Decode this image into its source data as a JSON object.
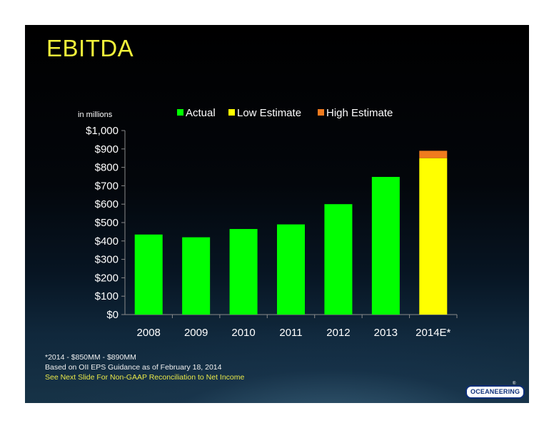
{
  "title": "EBITDA",
  "footer": {
    "note1": "*2014 - $850MM - $890MM",
    "note2": "Based on OII EPS Guidance as of February 18, 2014",
    "note3": "See Next Slide For Non-GAAP Reconciliation to Net Income"
  },
  "logo": {
    "text": "OCEANEERING",
    "mark": "®"
  },
  "colors": {
    "actual": "#00ff00",
    "low_estimate": "#ffff00",
    "high_estimate": "#f07b1e",
    "title": "#f2f23a"
  },
  "chart_data": {
    "type": "bar",
    "stacked": true,
    "title": "",
    "unit_note": "in millions",
    "categories": [
      "2008",
      "2009",
      "2010",
      "2011",
      "2012",
      "2013",
      "2014E*"
    ],
    "series": [
      {
        "name": "Actual",
        "values": [
          435,
          420,
          465,
          490,
          600,
          748,
          null
        ]
      },
      {
        "name": "Low Estimate",
        "values": [
          null,
          null,
          null,
          null,
          null,
          null,
          850
        ]
      },
      {
        "name": "High Estimate",
        "values": [
          null,
          null,
          null,
          null,
          null,
          null,
          40
        ]
      }
    ],
    "ylim": [
      0,
      1000
    ],
    "yticks": [
      "$0",
      "$100",
      "$200",
      "$300",
      "$400",
      "$500",
      "$600",
      "$700",
      "$800",
      "$900",
      "$1,000"
    ],
    "legend_position": "top",
    "grid": false
  }
}
